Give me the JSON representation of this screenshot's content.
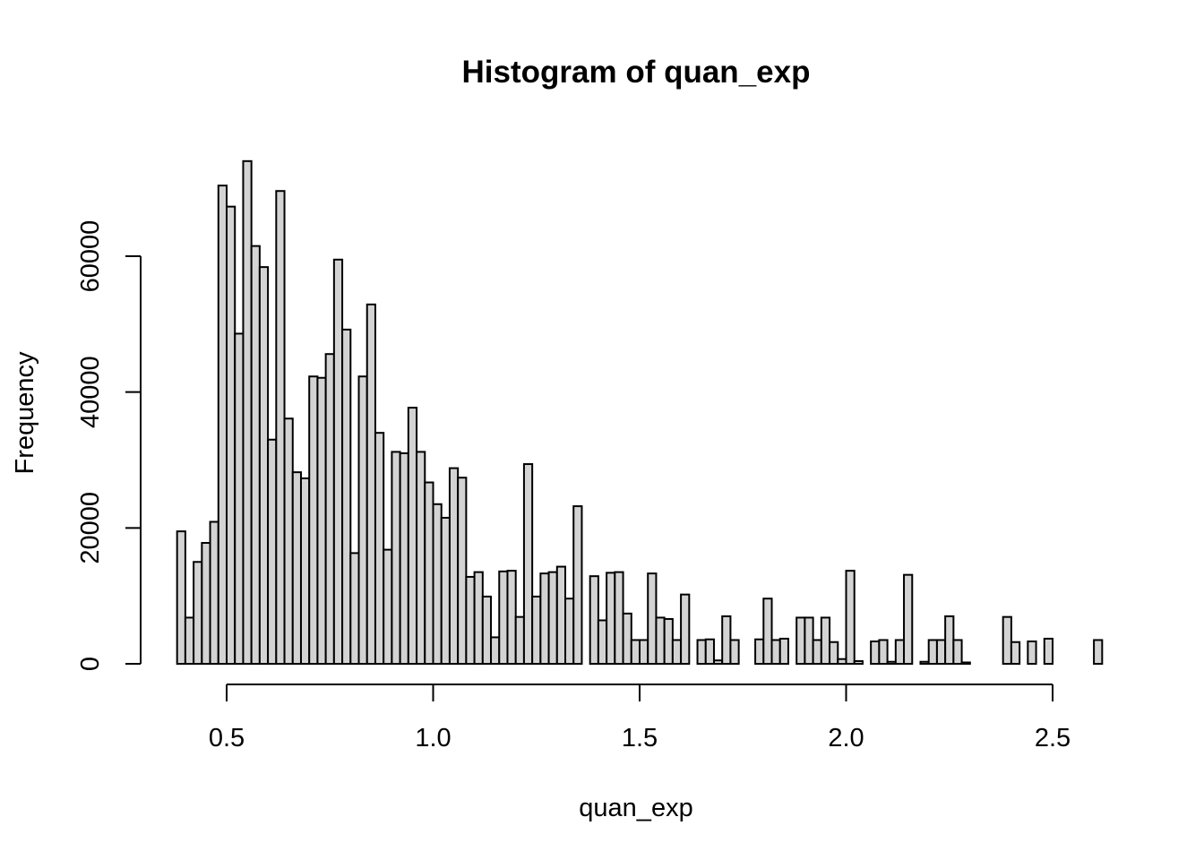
{
  "chart_data": {
    "type": "bar",
    "title": "Histogram of quan_exp",
    "xlabel": "quan_exp",
    "ylabel": "Frequency",
    "bin_width": 0.02,
    "x_start": 0.38,
    "xlim": [
      0.38,
      2.6
    ],
    "ylim": [
      0,
      74000
    ],
    "x_ticks": [
      0.5,
      1.0,
      1.5,
      2.0,
      2.5
    ],
    "x_tick_labels": [
      "0.5",
      "1.0",
      "1.5",
      "2.0",
      "2.5"
    ],
    "y_ticks": [
      0,
      20000,
      40000,
      60000
    ],
    "y_tick_labels": [
      "0",
      "20000",
      "40000",
      "60000"
    ],
    "values": [
      19500,
      6800,
      15000,
      17800,
      20900,
      70400,
      67300,
      48600,
      74000,
      61500,
      58400,
      33000,
      69600,
      36100,
      28200,
      27300,
      42300,
      42100,
      45600,
      59500,
      49200,
      16300,
      42300,
      52900,
      34000,
      16800,
      31200,
      31000,
      37700,
      31200,
      26700,
      23500,
      21500,
      28800,
      27400,
      12800,
      13500,
      9900,
      3900,
      13600,
      13700,
      6900,
      29400,
      9900,
      13300,
      13500,
      14300,
      9600,
      23200,
      0,
      12900,
      6400,
      13400,
      13500,
      7400,
      3500,
      3500,
      13300,
      6800,
      6600,
      3500,
      10200,
      0,
      3500,
      3600,
      500,
      7000,
      3500,
      0,
      0,
      3600,
      9600,
      3500,
      3700,
      0,
      6800,
      6800,
      3500,
      6800,
      3200,
      700,
      13700,
      400,
      0,
      3300,
      3500,
      300,
      3500,
      13100,
      0,
      300,
      3500,
      3500,
      7000,
      3500,
      200,
      0,
      0,
      0,
      0,
      6900,
      3200,
      0,
      3300,
      0,
      3700,
      0,
      0,
      0,
      0,
      0,
      3500
    ]
  }
}
